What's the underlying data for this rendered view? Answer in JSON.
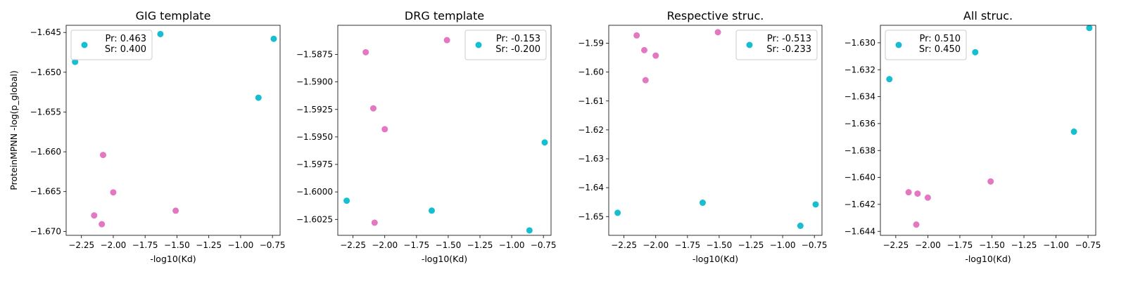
{
  "chart_data": [
    {
      "type": "scatter",
      "title": "GIG template",
      "xlabel": "-log10(Kd)",
      "ylabel": "ProteinMPNN -log(p_global)",
      "xlim": [
        -2.37,
        -0.69
      ],
      "ylim": [
        -1.6705,
        -1.6441
      ],
      "xticks": [
        -2.25,
        -2.0,
        -1.75,
        -1.5,
        -1.25,
        -1.0,
        -0.75
      ],
      "xtick_labels": [
        "−2.25",
        "−2.00",
        "−1.75",
        "−1.50",
        "−1.25",
        "−1.00",
        "−0.75"
      ],
      "yticks": [
        -1.645,
        -1.65,
        -1.655,
        -1.66,
        -1.665,
        -1.67
      ],
      "ytick_labels": [
        "−1.645",
        "−1.650",
        "−1.655",
        "−1.660",
        "−1.665",
        "−1.670"
      ],
      "legend": {
        "position": "upper-left",
        "lines": [
          "Pr: 0.463",
          "Sr: 0.400"
        ]
      },
      "series": [
        {
          "color": "#17becf",
          "x": [
            -2.3,
            -1.63,
            -0.86,
            -0.74
          ],
          "y": [
            -1.6487,
            -1.6452,
            -1.6532,
            -1.6458
          ]
        },
        {
          "color": "#e377c2",
          "x": [
            -2.15,
            -2.09,
            -2.08,
            -2.0,
            -1.51
          ],
          "y": [
            -1.668,
            -1.6691,
            -1.6604,
            -1.6651,
            -1.6674
          ]
        }
      ]
    },
    {
      "type": "scatter",
      "title": "DRG template",
      "xlabel": "-log10(Kd)",
      "ylabel": "",
      "xlim": [
        -2.37,
        -0.69
      ],
      "ylim": [
        -1.60395,
        -1.58485
      ],
      "xticks": [
        -2.25,
        -2.0,
        -1.75,
        -1.5,
        -1.25,
        -1.0,
        -0.75
      ],
      "xtick_labels": [
        "−2.25",
        "−2.00",
        "−1.75",
        "−1.50",
        "−1.25",
        "−1.00",
        "−0.75"
      ],
      "yticks": [
        -1.5875,
        -1.59,
        -1.5925,
        -1.595,
        -1.5975,
        -1.6,
        -1.6025
      ],
      "ytick_labels": [
        "−1.5875",
        "−1.5900",
        "−1.5925",
        "−1.5950",
        "−1.5975",
        "−1.6000",
        "−1.6025"
      ],
      "legend": {
        "position": "upper-right",
        "lines": [
          "Pr: -0.153",
          "Sr: -0.200"
        ]
      },
      "series": [
        {
          "color": "#17becf",
          "x": [
            -2.3,
            -1.63,
            -0.86,
            -0.74
          ],
          "y": [
            -1.6008,
            -1.6017,
            -1.6035,
            -1.5955
          ]
        },
        {
          "color": "#e377c2",
          "x": [
            -2.15,
            -2.09,
            -2.08,
            -2.0,
            -1.51
          ],
          "y": [
            -1.5873,
            -1.5924,
            -1.6028,
            -1.5943,
            -1.5862
          ]
        }
      ]
    },
    {
      "type": "scatter",
      "title": "Respective struc.",
      "xlabel": "-log10(Kd)",
      "ylabel": "",
      "xlim": [
        -2.37,
        -0.69
      ],
      "ylim": [
        -1.6565,
        -1.5838
      ],
      "xticks": [
        -2.25,
        -2.0,
        -1.75,
        -1.5,
        -1.25,
        -1.0,
        -0.75
      ],
      "xtick_labels": [
        "−2.25",
        "−2.00",
        "−1.75",
        "−1.50",
        "−1.25",
        "−1.00",
        "−0.75"
      ],
      "yticks": [
        -1.59,
        -1.6,
        -1.61,
        -1.62,
        -1.63,
        -1.64,
        -1.65
      ],
      "ytick_labels": [
        "−1.59",
        "−1.60",
        "−1.61",
        "−1.62",
        "−1.63",
        "−1.64",
        "−1.65"
      ],
      "legend": {
        "position": "upper-right",
        "lines": [
          "Pr: -0.513",
          "Sr: -0.233"
        ]
      },
      "series": [
        {
          "color": "#17becf",
          "x": [
            -2.3,
            -1.63,
            -0.86,
            -0.74
          ],
          "y": [
            -1.6487,
            -1.6452,
            -1.6532,
            -1.6458
          ]
        },
        {
          "color": "#e377c2",
          "x": [
            -2.15,
            -2.09,
            -2.08,
            -2.0,
            -1.51
          ],
          "y": [
            -1.5873,
            -1.5924,
            -1.6028,
            -1.5943,
            -1.5862
          ]
        }
      ]
    },
    {
      "type": "scatter",
      "title": "All struc.",
      "xlabel": "-log10(Kd)",
      "ylabel": "",
      "xlim": [
        -2.37,
        -0.69
      ],
      "ylim": [
        -1.6443,
        -1.6287
      ],
      "xticks": [
        -2.25,
        -2.0,
        -1.75,
        -1.5,
        -1.25,
        -1.0,
        -0.75
      ],
      "xtick_labels": [
        "−2.25",
        "−2.00",
        "−1.75",
        "−1.50",
        "−1.25",
        "−1.00",
        "−0.75"
      ],
      "yticks": [
        -1.63,
        -1.632,
        -1.634,
        -1.636,
        -1.638,
        -1.64,
        -1.642,
        -1.644
      ],
      "ytick_labels": [
        "−1.630",
        "−1.632",
        "−1.634",
        "−1.636",
        "−1.638",
        "−1.640",
        "−1.642",
        "−1.644"
      ],
      "legend": {
        "position": "upper-left",
        "lines": [
          "Pr: 0.510",
          "Sr: 0.450"
        ]
      },
      "series": [
        {
          "color": "#17becf",
          "x": [
            -2.3,
            -1.63,
            -0.86,
            -0.74
          ],
          "y": [
            -1.6327,
            -1.6307,
            -1.6366,
            -1.6289
          ]
        },
        {
          "color": "#e377c2",
          "x": [
            -2.15,
            -2.09,
            -2.08,
            -2.0,
            -1.51
          ],
          "y": [
            -1.6411,
            -1.6435,
            -1.6412,
            -1.6415,
            -1.6403
          ]
        }
      ]
    }
  ]
}
